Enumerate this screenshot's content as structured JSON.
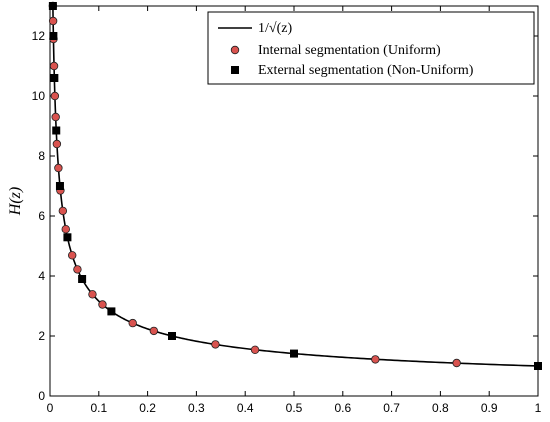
{
  "chart_data": {
    "type": "line",
    "title": "",
    "xlabel": "",
    "ylabel": "H(z)",
    "xlim": [
      0,
      1
    ],
    "ylim": [
      0,
      13
    ],
    "grid": false,
    "legend_position": "top-right",
    "xticks": [
      0,
      0.1,
      0.2,
      0.3,
      0.4,
      0.5,
      0.6,
      0.7,
      0.8,
      0.9,
      1
    ],
    "xtick_labels": [
      "0",
      "0.1",
      "0.2",
      "0.3",
      "0.4",
      "0.5",
      "0.6",
      "0.7",
      "0.8",
      "0.9",
      "1"
    ],
    "yticks": [
      0,
      2,
      4,
      6,
      8,
      10,
      12
    ],
    "ytick_labels": [
      "0",
      "2",
      "4",
      "6",
      "8",
      "10",
      "12"
    ],
    "series": [
      {
        "name": "1/√(z)",
        "type": "line",
        "color": "#000000",
        "function": "1/sqrt(z)",
        "x_range": [
          0.0059,
          1
        ]
      },
      {
        "name": "Internal segmentation (Uniform)",
        "type": "scatter",
        "marker": "circle",
        "color": "#d9534f",
        "edge_color": "#222222",
        "x": [
          0.0059,
          0.0064,
          0.0071,
          0.0083,
          0.01,
          0.0116,
          0.0141,
          0.0172,
          0.0213,
          0.0263,
          0.0323,
          0.0455,
          0.0562,
          0.087,
          0.1075,
          0.1695,
          0.2128,
          0.339,
          0.4202,
          0.6667,
          0.8333
        ],
        "y": [
          13.0,
          12.5,
          11.9,
          11.0,
          10.0,
          9.3,
          8.4,
          7.6,
          6.85,
          6.17,
          5.56,
          4.69,
          4.22,
          3.39,
          3.05,
          2.43,
          2.17,
          1.72,
          1.54,
          1.22,
          1.1
        ]
      },
      {
        "name": "External segmentation (Non-Uniform)",
        "type": "scatter",
        "marker": "square",
        "color": "#000000",
        "x": [
          0.0059,
          0.0069,
          0.0089,
          0.0128,
          0.0204,
          0.0357,
          0.0658,
          0.1258,
          0.25,
          0.5,
          1.0
        ],
        "y": [
          13.0,
          12.0,
          10.6,
          8.85,
          7.0,
          5.29,
          3.9,
          2.82,
          2.0,
          1.414,
          1.0
        ]
      }
    ]
  }
}
